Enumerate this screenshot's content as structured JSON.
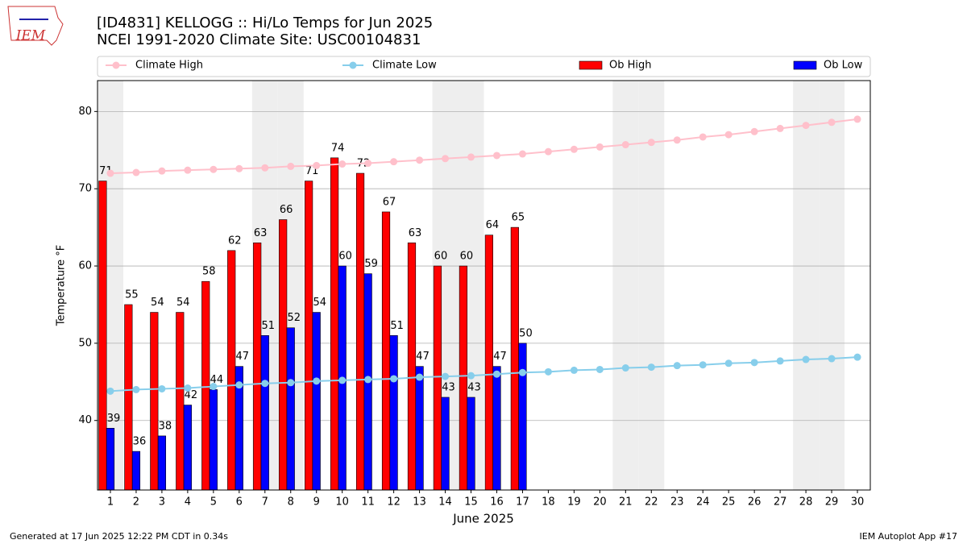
{
  "chart_data": {
    "type": "bar",
    "logo_text": "IEM",
    "title": "[ID4831] KELLOGG :: Hi/Lo Temps for Jun 2025",
    "subtitle": "NCEI 1991-2020 Climate Site: USC00104831",
    "x_label": "June 2025",
    "y_label": "Temperature °F",
    "footer_left": "Generated at 17 Jun 2025 12:22 PM CDT in 0.34s",
    "footer_right": "IEM Autoplot App #17",
    "x": [
      1,
      2,
      3,
      4,
      5,
      6,
      7,
      8,
      9,
      10,
      11,
      12,
      13,
      14,
      15,
      16,
      17,
      18,
      19,
      20,
      21,
      22,
      23,
      24,
      25,
      26,
      27,
      28,
      29,
      30
    ],
    "xlim": [
      0.5,
      30.5
    ],
    "xticks": [
      1,
      2,
      3,
      4,
      5,
      6,
      7,
      8,
      9,
      10,
      11,
      12,
      13,
      14,
      15,
      16,
      17,
      18,
      19,
      20,
      21,
      22,
      23,
      24,
      25,
      26,
      27,
      28,
      29,
      30
    ],
    "ylim": [
      31,
      84
    ],
    "yticks": [
      40,
      50,
      60,
      70,
      80
    ],
    "grid": true,
    "legend": "top",
    "shaded_days": [
      1,
      7,
      8,
      14,
      15,
      21,
      22,
      28,
      29
    ],
    "shade_color": "#eeeeee",
    "series": [
      {
        "name": "Climate High",
        "type": "line",
        "color": "#ffc0cb",
        "values": [
          72.0,
          72.1,
          72.3,
          72.4,
          72.5,
          72.6,
          72.7,
          72.9,
          73.0,
          73.2,
          73.3,
          73.5,
          73.7,
          73.9,
          74.1,
          74.3,
          74.5,
          74.8,
          75.1,
          75.4,
          75.7,
          76.0,
          76.3,
          76.7,
          77.0,
          77.4,
          77.8,
          78.2,
          78.6,
          79.0
        ]
      },
      {
        "name": "Climate Low",
        "type": "line",
        "color": "#87ceeb",
        "values": [
          43.8,
          44.0,
          44.1,
          44.2,
          44.4,
          44.6,
          44.8,
          44.9,
          45.1,
          45.2,
          45.3,
          45.4,
          45.6,
          45.7,
          45.8,
          46.0,
          46.2,
          46.3,
          46.5,
          46.6,
          46.8,
          46.9,
          47.1,
          47.2,
          47.4,
          47.5,
          47.7,
          47.9,
          48.0,
          48.2
        ]
      },
      {
        "name": "Ob High",
        "type": "bar",
        "color": "#ff0000",
        "values": [
          71,
          55,
          54,
          54,
          58,
          62,
          63,
          66,
          71,
          74,
          72,
          67,
          63,
          60,
          60,
          64,
          65,
          null,
          null,
          null,
          null,
          null,
          null,
          null,
          null,
          null,
          null,
          null,
          null,
          null
        ]
      },
      {
        "name": "Ob Low",
        "type": "bar",
        "color": "#0000ff",
        "values": [
          39,
          36,
          38,
          42,
          44,
          47,
          51,
          52,
          54,
          60,
          59,
          51,
          47,
          43,
          43,
          47,
          50,
          null,
          null,
          null,
          null,
          null,
          null,
          null,
          null,
          null,
          null,
          null,
          null,
          null
        ]
      }
    ]
  }
}
